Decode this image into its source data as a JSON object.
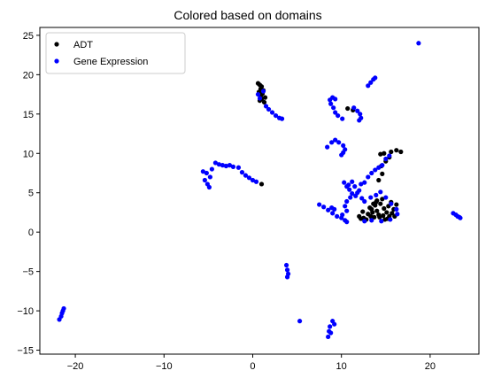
{
  "chart_data": {
    "type": "scatter",
    "title": "Colored based on domains",
    "xlabel": "",
    "ylabel": "",
    "xlim": [
      -24,
      25.5
    ],
    "ylim": [
      -15.5,
      26
    ],
    "xticks": [
      -20,
      -10,
      0,
      10,
      20
    ],
    "yticks": [
      -15,
      -10,
      -5,
      0,
      5,
      10,
      15,
      20,
      25
    ],
    "grid": false,
    "legend_position": "top-left",
    "series": [
      {
        "name": "ADT",
        "color": "#000000",
        "marker": "circle",
        "points": [
          [
            0.6,
            18.9
          ],
          [
            0.8,
            18.7
          ],
          [
            1.0,
            18.5
          ],
          [
            0.9,
            18.2
          ],
          [
            1.2,
            18.0
          ],
          [
            0.7,
            17.8
          ],
          [
            1.1,
            17.6
          ],
          [
            0.9,
            17.3
          ],
          [
            1.4,
            17.1
          ],
          [
            1.0,
            16.9
          ],
          [
            0.8,
            16.7
          ],
          [
            1.3,
            16.5
          ],
          [
            1.0,
            6.1
          ],
          [
            10.7,
            15.7
          ],
          [
            11.3,
            15.5
          ],
          [
            14.4,
            9.9
          ],
          [
            14.8,
            10.0
          ],
          [
            15.6,
            10.2
          ],
          [
            16.2,
            10.4
          ],
          [
            16.7,
            10.2
          ],
          [
            15.4,
            9.5
          ],
          [
            15.0,
            9.0
          ],
          [
            14.5,
            8.4
          ],
          [
            14.6,
            7.4
          ],
          [
            14.2,
            6.6
          ],
          [
            12.0,
            2.0
          ],
          [
            12.5,
            1.8
          ],
          [
            13.0,
            2.3
          ],
          [
            13.4,
            2.9
          ],
          [
            13.8,
            3.4
          ],
          [
            14.0,
            4.0
          ],
          [
            14.4,
            3.6
          ],
          [
            14.8,
            3.0
          ],
          [
            15.1,
            2.5
          ],
          [
            15.4,
            2.0
          ],
          [
            14.2,
            2.2
          ],
          [
            13.7,
            1.9
          ],
          [
            13.2,
            3.1
          ],
          [
            14.6,
            4.2
          ],
          [
            15.6,
            3.8
          ],
          [
            15.9,
            2.9
          ],
          [
            16.2,
            3.5
          ],
          [
            15.2,
            1.7
          ],
          [
            14.0,
            2.7
          ],
          [
            13.5,
            2.5
          ],
          [
            12.8,
            1.6
          ],
          [
            14.9,
            1.6
          ],
          [
            15.7,
            2.4
          ],
          [
            13.9,
            3.8
          ],
          [
            14.3,
            1.9
          ],
          [
            12.4,
            2.6
          ],
          [
            15.3,
            3.3
          ],
          [
            14.7,
            2.1
          ],
          [
            13.3,
            2.0
          ],
          [
            16.0,
            2.0
          ],
          [
            12.2,
            1.7
          ],
          [
            13.6,
            3.6
          ]
        ]
      },
      {
        "name": "Gene Expression",
        "color": "#0000ff",
        "marker": "circle",
        "points": [
          [
            18.7,
            24.0
          ],
          [
            13.0,
            18.6
          ],
          [
            13.3,
            19.0
          ],
          [
            13.6,
            19.4
          ],
          [
            13.8,
            19.6
          ],
          [
            1.5,
            16.0
          ],
          [
            1.8,
            15.6
          ],
          [
            2.2,
            15.2
          ],
          [
            2.6,
            14.8
          ],
          [
            3.0,
            14.5
          ],
          [
            3.3,
            14.4
          ],
          [
            8.7,
            16.8
          ],
          [
            9.0,
            17.1
          ],
          [
            9.3,
            16.9
          ],
          [
            8.8,
            16.3
          ],
          [
            9.1,
            15.8
          ],
          [
            9.3,
            15.2
          ],
          [
            9.6,
            14.8
          ],
          [
            10.1,
            14.4
          ],
          [
            11.4,
            15.8
          ],
          [
            11.8,
            15.4
          ],
          [
            12.1,
            15.0
          ],
          [
            12.2,
            14.5
          ],
          [
            12.0,
            14.2
          ],
          [
            8.4,
            10.8
          ],
          [
            8.9,
            11.4
          ],
          [
            9.3,
            11.7
          ],
          [
            9.7,
            11.4
          ],
          [
            10.2,
            11.0
          ],
          [
            10.4,
            10.5
          ],
          [
            10.2,
            10.1
          ],
          [
            10.0,
            9.8
          ],
          [
            -5.6,
            7.7
          ],
          [
            -5.2,
            7.5
          ],
          [
            -4.8,
            7.0
          ],
          [
            -4.6,
            8.0
          ],
          [
            -4.2,
            8.8
          ],
          [
            -3.8,
            8.6
          ],
          [
            -3.4,
            8.5
          ],
          [
            -3.0,
            8.4
          ],
          [
            -2.6,
            8.5
          ],
          [
            -2.2,
            8.3
          ],
          [
            -1.6,
            8.2
          ],
          [
            -1.2,
            7.6
          ],
          [
            -0.8,
            7.2
          ],
          [
            -0.4,
            6.9
          ],
          [
            0.0,
            6.6
          ],
          [
            0.4,
            6.4
          ],
          [
            -5.4,
            6.6
          ],
          [
            -5.1,
            6.1
          ],
          [
            -4.9,
            5.7
          ],
          [
            0.8,
            17.0
          ],
          [
            0.6,
            17.5
          ],
          [
            1.2,
            17.9
          ],
          [
            7.5,
            3.5
          ],
          [
            8.0,
            3.2
          ],
          [
            8.5,
            2.8
          ],
          [
            9.0,
            2.4
          ],
          [
            9.5,
            2.0
          ],
          [
            10.0,
            1.8
          ],
          [
            10.4,
            1.5
          ],
          [
            10.6,
            1.3
          ],
          [
            8.9,
            3.1
          ],
          [
            9.2,
            2.9
          ],
          [
            10.3,
            6.3
          ],
          [
            10.6,
            5.8
          ],
          [
            10.9,
            5.4
          ],
          [
            11.2,
            4.9
          ],
          [
            11.0,
            4.4
          ],
          [
            10.6,
            3.9
          ],
          [
            10.4,
            3.3
          ],
          [
            10.6,
            2.7
          ],
          [
            10.1,
            2.2
          ],
          [
            11.5,
            5.8
          ],
          [
            12.2,
            6.1
          ],
          [
            12.6,
            6.3
          ],
          [
            13.0,
            7.0
          ],
          [
            13.4,
            7.5
          ],
          [
            13.8,
            7.9
          ],
          [
            14.2,
            8.2
          ],
          [
            14.6,
            8.5
          ],
          [
            15.0,
            9.3
          ],
          [
            15.4,
            9.7
          ],
          [
            11.2,
            6.4
          ],
          [
            10.8,
            6.0
          ],
          [
            12.0,
            5.3
          ],
          [
            11.8,
            5.0
          ],
          [
            11.6,
            4.6
          ],
          [
            12.3,
            4.3
          ],
          [
            12.6,
            3.9
          ],
          [
            13.3,
            4.4
          ],
          [
            13.9,
            4.7
          ],
          [
            14.4,
            5.1
          ],
          [
            15.0,
            4.4
          ],
          [
            15.6,
            3.6
          ],
          [
            16.2,
            2.9
          ],
          [
            16.3,
            2.3
          ],
          [
            15.5,
            1.6
          ],
          [
            14.5,
            1.4
          ],
          [
            13.4,
            1.5
          ],
          [
            12.6,
            1.4
          ],
          [
            22.6,
            2.4
          ],
          [
            22.9,
            2.2
          ],
          [
            23.1,
            2.0
          ],
          [
            23.3,
            1.9
          ],
          [
            23.4,
            1.8
          ],
          [
            3.8,
            -4.2
          ],
          [
            3.9,
            -4.8
          ],
          [
            4.0,
            -5.3
          ],
          [
            3.9,
            -5.7
          ],
          [
            5.3,
            -11.3
          ],
          [
            8.5,
            -13.3
          ],
          [
            8.6,
            -12.6
          ],
          [
            8.7,
            -12.0
          ],
          [
            9.0,
            -11.3
          ],
          [
            9.2,
            -11.7
          ],
          [
            8.8,
            -12.8
          ],
          [
            -21.8,
            -11.1
          ],
          [
            -21.6,
            -10.7
          ],
          [
            -21.5,
            -10.3
          ],
          [
            -21.4,
            -10.0
          ],
          [
            -21.3,
            -9.7
          ]
        ]
      }
    ]
  }
}
